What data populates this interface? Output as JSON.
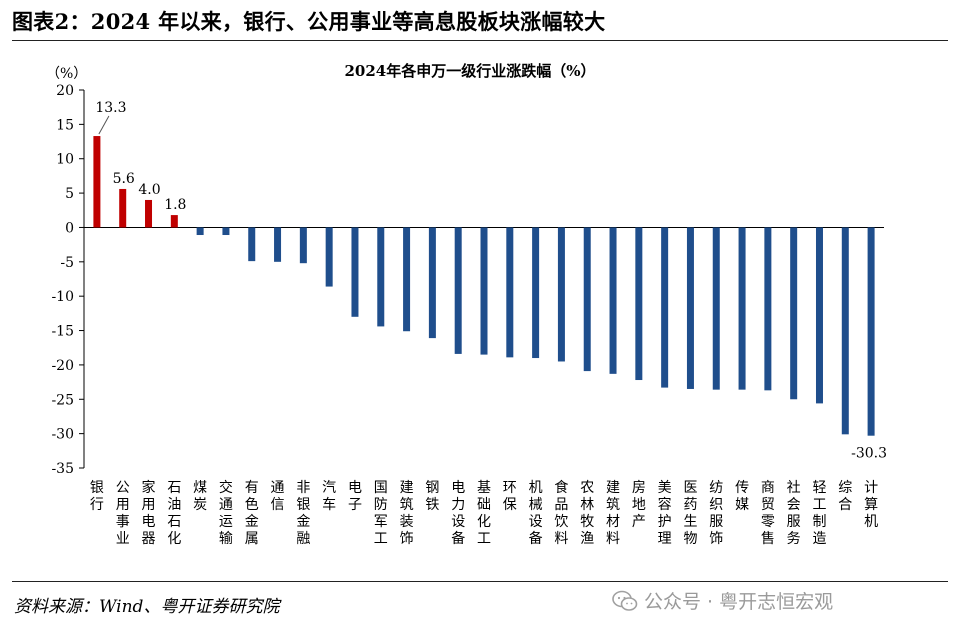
{
  "figure": {
    "title": "图表2：2024 年以来，银行、公用事业等高息股板块涨幅较大",
    "source": "资料来源：Wind、粤开证券研究院",
    "watermark": "公众号 · 粤开志恒宏观"
  },
  "colors": {
    "positive": "#C00000",
    "negative": "#1F4E8C",
    "axis": "#000000"
  },
  "chart_data": {
    "type": "bar",
    "title": "2024年各申万一级行业涨跌幅（%）",
    "ylabel": "（%）",
    "xlabel": "",
    "ylim": [
      -35,
      20
    ],
    "yticks": [
      20,
      15,
      10,
      5,
      0,
      -5,
      -10,
      -15,
      -20,
      -25,
      -30,
      -35
    ],
    "categories": [
      "银行",
      "公用事业",
      "家用电器",
      "石油石化",
      "煤炭",
      "交通运输",
      "有色金属",
      "通信",
      "非银金融",
      "汽车",
      "电子",
      "国防军工",
      "建筑装饰",
      "钢铁",
      "电力设备",
      "基础化工",
      "环保",
      "机械设备",
      "食品饮料",
      "农林牧渔",
      "建筑材料",
      "房地产",
      "美容护理",
      "医药生物",
      "纺织服饰",
      "传媒",
      "商贸零售",
      "社会服务",
      "轻工制造",
      "综合",
      "计算机"
    ],
    "values": [
      13.3,
      5.6,
      4.0,
      1.8,
      -1.1,
      -1.1,
      -4.9,
      -5.0,
      -5.2,
      -8.6,
      -13.0,
      -14.4,
      -15.1,
      -16.1,
      -18.4,
      -18.5,
      -18.9,
      -19.0,
      -19.5,
      -20.9,
      -21.3,
      -22.2,
      -23.3,
      -23.5,
      -23.6,
      -23.6,
      -23.7,
      -25.0,
      -25.6,
      -30.1,
      -30.3
    ],
    "data_labels": [
      {
        "index": 0,
        "text": "13.3"
      },
      {
        "index": 1,
        "text": "5.6"
      },
      {
        "index": 2,
        "text": "4.0"
      },
      {
        "index": 3,
        "text": "1.8"
      },
      {
        "index": 30,
        "text": "-30.3"
      }
    ]
  }
}
